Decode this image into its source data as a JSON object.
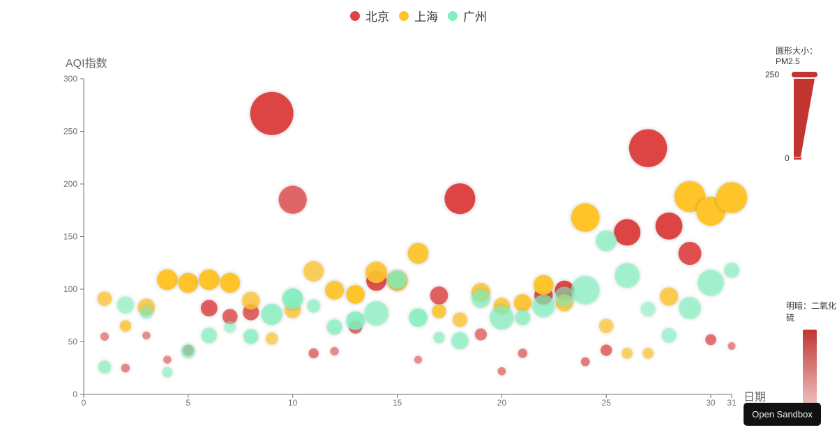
{
  "legend": [
    {
      "name": "北京",
      "color": "#dd4444"
    },
    {
      "name": "上海",
      "color": "#fec42c"
    },
    {
      "name": "广州",
      "color": "#80F1BE"
    }
  ],
  "visual_map_size": {
    "title": "圆形大小：PM2.5",
    "max_label": "250",
    "min_label": "0",
    "color": "#c23531"
  },
  "visual_map_opacity": {
    "title": "明暗：二氧化硫",
    "color": "#c23531"
  },
  "sandbox_button": {
    "label": "Open Sandbox"
  },
  "chart_data": {
    "type": "scatter",
    "title": "",
    "xlabel": "日期",
    "ylabel": "AQI指数",
    "xlim": [
      0,
      31
    ],
    "ylim": [
      0,
      300
    ],
    "x_ticks": [
      0,
      5,
      10,
      15,
      20,
      25,
      30,
      31
    ],
    "y_ticks": [
      0,
      50,
      100,
      150,
      200,
      250,
      300
    ],
    "grid": false,
    "legend_position": "top-center",
    "size_dimension": "PM2.5 (0-250 → 10-70px)",
    "opacity_dimension": "SO2 (0-50 → alpha 0.5-1)",
    "fields": [
      "day",
      "AQI",
      "PM2.5",
      "SO2"
    ],
    "series": [
      {
        "name": "北京",
        "color": "#dd4444",
        "data": [
          [
            1,
            55,
            9,
            6
          ],
          [
            2,
            25,
            11,
            9
          ],
          [
            3,
            56,
            7,
            5
          ],
          [
            4,
            33,
            7,
            6
          ],
          [
            5,
            42,
            24,
            16
          ],
          [
            6,
            82,
            58,
            33
          ],
          [
            7,
            74,
            49,
            27
          ],
          [
            8,
            78,
            55,
            29
          ],
          [
            9,
            267,
            216,
            64
          ],
          [
            10,
            185,
            127,
            27
          ],
          [
            11,
            39,
            19,
            15
          ],
          [
            12,
            41,
            11,
            7
          ],
          [
            13,
            64,
            38,
            22
          ],
          [
            14,
            108,
            79,
            41
          ],
          [
            15,
            108,
            63,
            26
          ],
          [
            16,
            33,
            6,
            5
          ],
          [
            17,
            94,
            66,
            31
          ],
          [
            18,
            186,
            142,
            79
          ],
          [
            19,
            57,
            31,
            14
          ],
          [
            20,
            22,
            8,
            10
          ],
          [
            21,
            39,
            15,
            13
          ],
          [
            22,
            94,
            69,
            39
          ],
          [
            23,
            99,
            73,
            48
          ],
          [
            24,
            31,
            12,
            16
          ],
          [
            25,
            42,
            27,
            22
          ],
          [
            26,
            154,
            117,
            58
          ],
          [
            27,
            234,
            185,
            69
          ],
          [
            28,
            160,
            120,
            50
          ],
          [
            29,
            134,
            96,
            41
          ],
          [
            30,
            52,
            24,
            21
          ],
          [
            31,
            46,
            5,
            6
          ]
        ]
      },
      {
        "name": "上海",
        "color": "#fec42c",
        "data": [
          [
            1,
            91,
            45,
            23
          ],
          [
            2,
            65,
            27,
            29
          ],
          [
            3,
            83,
            60,
            27
          ],
          [
            4,
            109,
            81,
            51
          ],
          [
            5,
            106,
            77,
            51
          ],
          [
            6,
            109,
            81,
            51
          ],
          [
            7,
            106,
            77,
            51
          ],
          [
            8,
            89,
            65,
            26
          ],
          [
            9,
            53,
            33,
            17
          ],
          [
            10,
            80,
            55,
            24
          ],
          [
            11,
            117,
            81,
            24
          ],
          [
            12,
            99,
            71,
            42
          ],
          [
            13,
            95,
            69,
            50
          ],
          [
            14,
            116,
            87,
            40
          ],
          [
            15,
            108,
            80,
            37
          ],
          [
            16,
            134,
            83,
            43
          ],
          [
            17,
            79,
            43,
            37
          ],
          [
            18,
            71,
            46,
            25
          ],
          [
            19,
            97,
            71,
            31
          ],
          [
            20,
            84,
            57,
            31
          ],
          [
            21,
            87,
            63,
            41
          ],
          [
            22,
            104,
            77,
            48
          ],
          [
            23,
            87,
            62,
            28
          ],
          [
            24,
            168,
            128,
            56
          ],
          [
            25,
            65,
            45,
            17
          ],
          [
            26,
            39,
            24,
            17
          ],
          [
            27,
            39,
            24,
            19
          ],
          [
            28,
            93,
            68,
            29
          ],
          [
            29,
            188,
            143,
            51
          ],
          [
            30,
            174,
            131,
            50
          ],
          [
            31,
            187,
            143,
            53
          ]
        ]
      },
      {
        "name": "广州",
        "color": "#80F1BE",
        "data": [
          [
            1,
            26,
            37,
            13
          ],
          [
            2,
            85,
            62,
            8
          ],
          [
            3,
            78,
            38,
            7
          ],
          [
            4,
            21,
            21,
            9
          ],
          [
            5,
            41,
            42,
            13
          ],
          [
            6,
            56,
            52,
            16
          ],
          [
            7,
            64,
            30,
            2
          ],
          [
            8,
            55,
            48,
            26
          ],
          [
            9,
            76,
            85,
            27
          ],
          [
            10,
            91,
            81,
            40
          ],
          [
            11,
            84,
            39,
            11
          ],
          [
            12,
            64,
            51,
            23
          ],
          [
            13,
            70,
            69,
            36
          ],
          [
            14,
            77,
            105,
            16
          ],
          [
            15,
            109,
            68,
            29
          ],
          [
            16,
            73,
            68,
            34
          ],
          [
            17,
            54,
            27,
            12
          ],
          [
            18,
            51,
            61,
            19
          ],
          [
            19,
            91,
            71,
            18
          ],
          [
            20,
            73,
            102,
            19
          ],
          [
            21,
            73,
            50,
            20
          ],
          [
            22,
            84,
            94,
            18
          ],
          [
            23,
            93,
            77,
            7
          ],
          [
            24,
            99,
            130,
            15
          ],
          [
            25,
            146,
            84,
            17
          ],
          [
            26,
            113,
            108,
            15
          ],
          [
            27,
            81,
            48,
            3
          ],
          [
            28,
            56,
            48,
            9
          ],
          [
            29,
            82,
            92,
            13
          ],
          [
            30,
            106,
            116,
            16
          ],
          [
            31,
            118,
            50,
            11
          ]
        ]
      }
    ]
  }
}
